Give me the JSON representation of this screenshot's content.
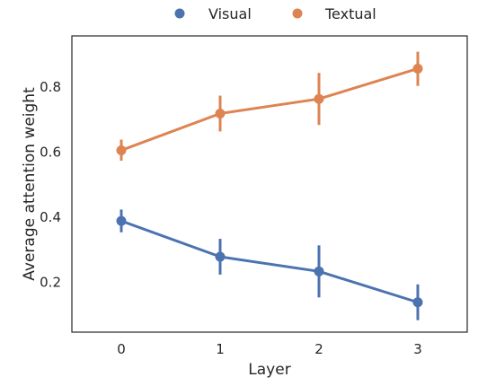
{
  "chart_data": {
    "type": "line",
    "xlabel": "Layer",
    "ylabel": "Average attention weight",
    "categories": [
      "0",
      "1",
      "2",
      "3"
    ],
    "ylim": [
      0.1,
      0.95
    ],
    "yticks": [
      "0.2",
      "0.4",
      "0.6",
      "0.8"
    ],
    "grid": false,
    "legend_position": "top-center",
    "series": [
      {
        "name": "Visual",
        "color": "#4C72B0",
        "values": [
          0.39,
          0.28,
          0.235,
          0.14
        ],
        "err_low": [
          0.355,
          0.225,
          0.155,
          0.085
        ],
        "err_high": [
          0.425,
          0.335,
          0.315,
          0.195
        ]
      },
      {
        "name": "Textual",
        "color": "#DD8452",
        "values": [
          0.607,
          0.72,
          0.765,
          0.858
        ],
        "err_low": [
          0.575,
          0.665,
          0.685,
          0.805
        ],
        "err_high": [
          0.64,
          0.775,
          0.845,
          0.91
        ]
      }
    ]
  }
}
